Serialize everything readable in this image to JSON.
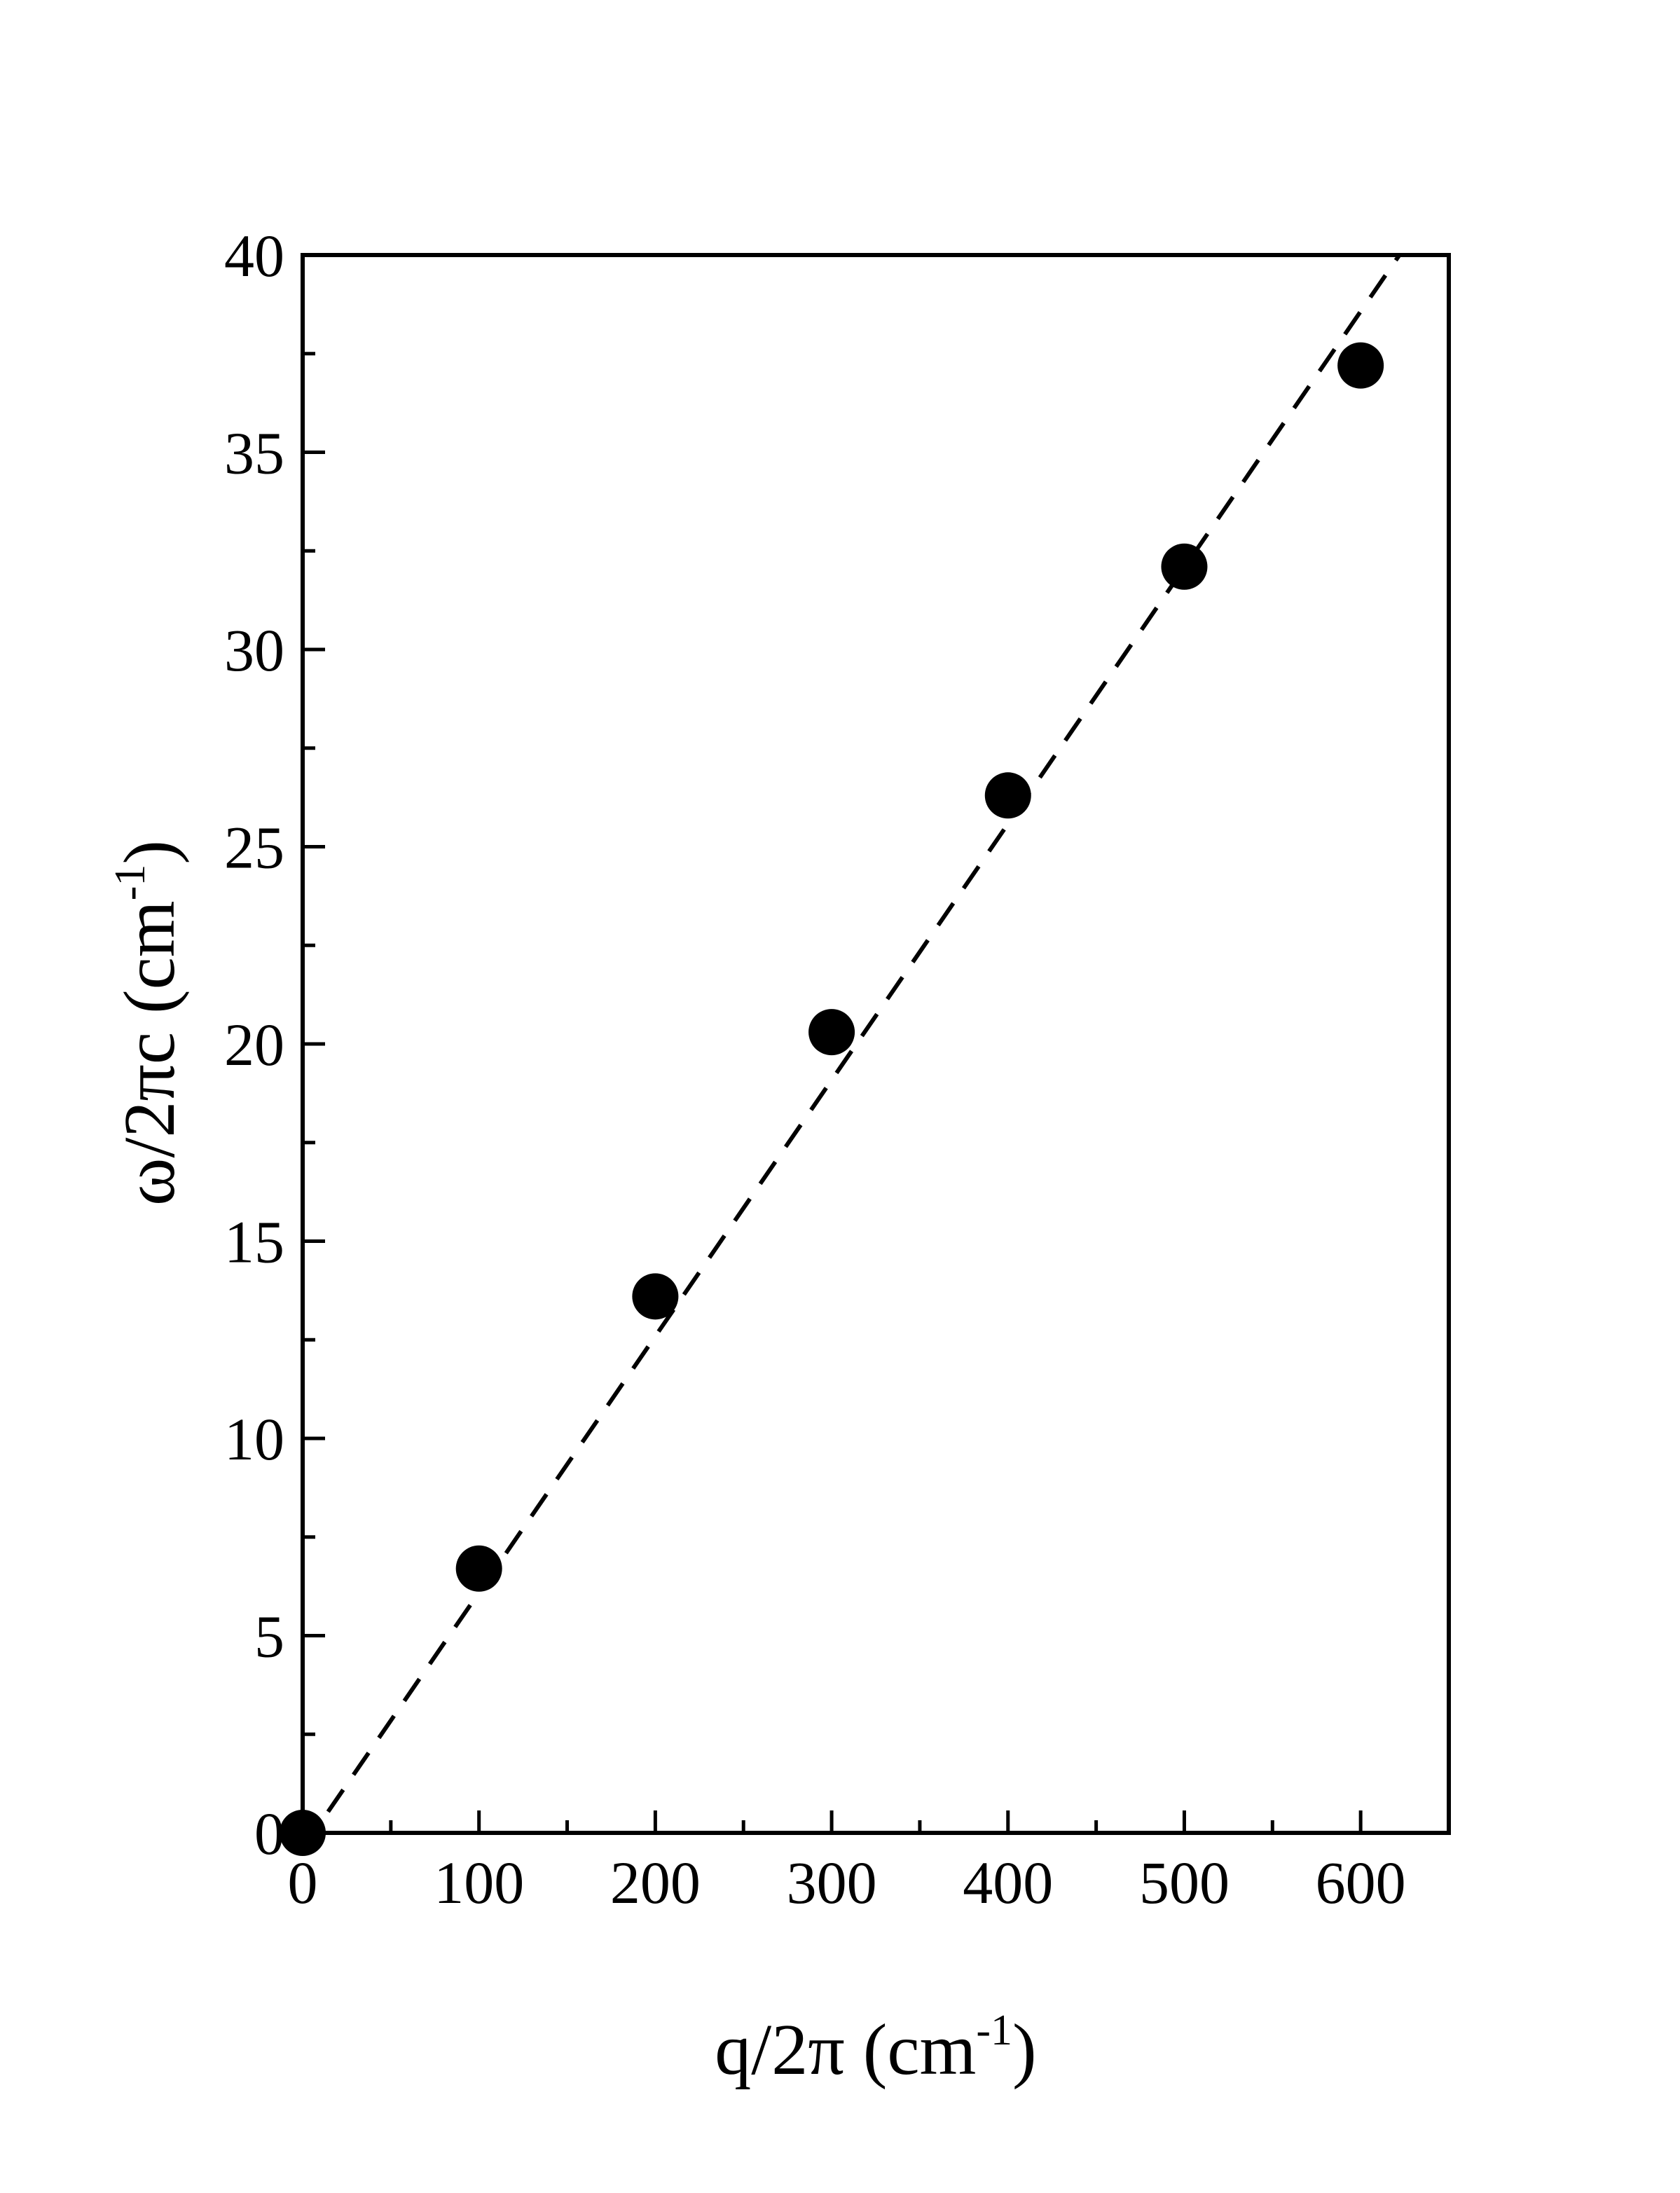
{
  "chart_data": {
    "type": "scatter",
    "title": "",
    "xlabel": {
      "base": "q/2π  (cm",
      "sup": "-1",
      "close": ")"
    },
    "ylabel": {
      "base": "ω/2πc  (cm",
      "sup": "-1",
      "close": ")"
    },
    "xlim": [
      0,
      650
    ],
    "ylim": [
      0,
      40
    ],
    "xticks": [
      0,
      100,
      200,
      300,
      400,
      500,
      600
    ],
    "yticks": [
      0,
      5,
      10,
      15,
      20,
      25,
      30,
      35,
      40
    ],
    "x_tick_labels": [
      "0",
      "100",
      "200",
      "300",
      "400",
      "500",
      "600"
    ],
    "y_tick_labels": [
      "0",
      "5",
      "10",
      "15",
      "20",
      "25",
      "30",
      "35",
      "40"
    ],
    "x_minor_step": 50,
    "y_minor_step": 2.5,
    "grid": false,
    "legend": false,
    "series": [
      {
        "type": "scatter",
        "color": "#000000",
        "marker": "filled-circle",
        "x": [
          0,
          100,
          200,
          300,
          400,
          500,
          600
        ],
        "y": [
          0,
          6.7,
          13.6,
          20.3,
          26.3,
          32.1,
          37.2
        ]
      },
      {
        "type": "line",
        "style": "dashed",
        "color": "#000000",
        "x": [
          0,
          622
        ],
        "y": [
          -0.4,
          40
        ]
      }
    ]
  }
}
